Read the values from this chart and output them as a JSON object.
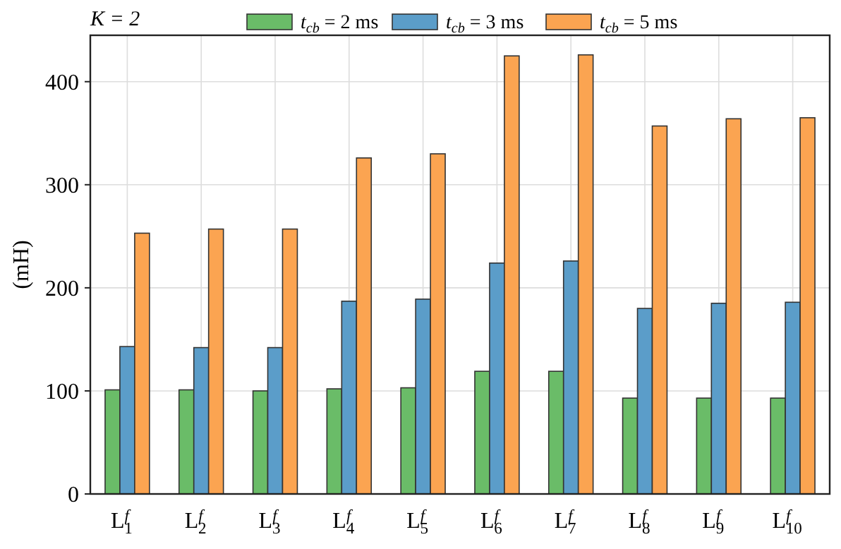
{
  "chart_data": {
    "type": "bar",
    "title": "K = 2",
    "ylabel": "(mH)",
    "categories": [
      "L$^{f}$$_{1}$",
      "L$^{f}$$_{2}$",
      "L$^{f}$$_{3}$",
      "L$^{f}$$_{4}$",
      "L$^{f}$$_{5}$",
      "L$^{f}$$_{6}$",
      "L$^{f}$$_{7}$",
      "L$^{f}$$_{8}$",
      "L$^{f}$$_{9}$",
      "L$^{f}$$_{10}$"
    ],
    "series": [
      {
        "name": "t$_{cb}$ = 2 ms",
        "color": "#6abc68",
        "values": [
          101,
          101,
          100,
          102,
          103,
          119,
          119,
          93,
          93,
          93
        ]
      },
      {
        "name": "t$_{cb}$ = 3 ms",
        "color": "#5b9dc9",
        "values": [
          143,
          142,
          142,
          187,
          189,
          224,
          226,
          180,
          185,
          186
        ]
      },
      {
        "name": "t$_{cb}$ = 5 ms",
        "color": "#fba451",
        "values": [
          253,
          257,
          257,
          326,
          330,
          425,
          426,
          357,
          364,
          365
        ]
      }
    ],
    "ylim": [
      0,
      445
    ],
    "yticks": [
      0,
      100,
      200,
      300,
      400
    ],
    "grid": true,
    "legend": "top"
  }
}
